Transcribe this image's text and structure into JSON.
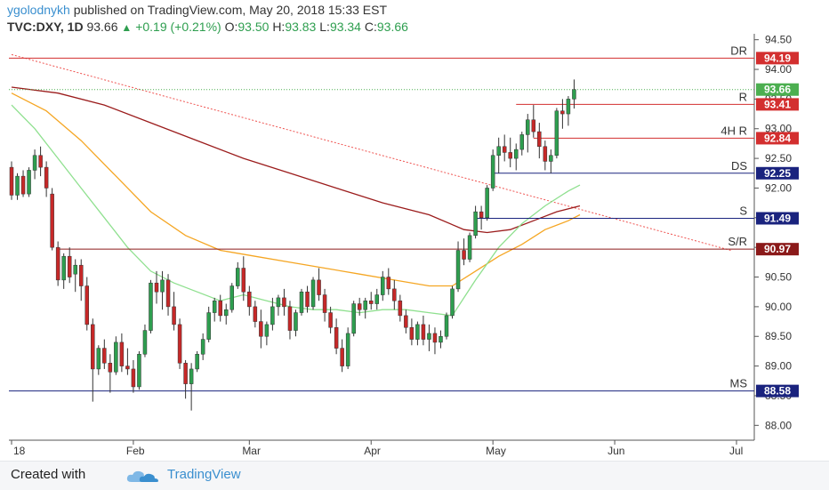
{
  "header": {
    "author": "ygolodnykh",
    "published": "published on TradingView.com, May 20, 2018 15:33 EST",
    "symbol": "TVC:DXY, 1D",
    "last": "93.66",
    "change": "+0.19 (+0.21%)",
    "o_label": "O:",
    "o": "93.50",
    "h_label": "H:",
    "h": "93.83",
    "l_label": "L:",
    "l": "93.34",
    "c_label": "C:",
    "c": "93.66"
  },
  "footer": {
    "created_with": "Created with",
    "brand": "TradingView"
  },
  "colors": {
    "up": "#2e9e4f",
    "down": "#c62828",
    "resistance": "#d32f2f",
    "support": "#1a237e",
    "sr": "#8b1a1a",
    "ma_fast": "#8fe08f",
    "ma_mid": "#f5a623",
    "ma_slow": "#9b1c1c",
    "trend": "#ef5350",
    "last": "#4caf50"
  },
  "chart_data": {
    "type": "candlestick",
    "y_axis": {
      "min": 87.75,
      "max": 94.6,
      "ticks": [
        "94.50",
        "94.00",
        "93.50",
        "93.00",
        "92.50",
        "92.00",
        "91.50",
        "91.00",
        "90.50",
        "90.00",
        "89.50",
        "89.00",
        "88.50",
        "88.00"
      ]
    },
    "x_ticks": [
      {
        "label": "18",
        "index": 0
      },
      {
        "label": "Feb",
        "index": 21
      },
      {
        "label": "Mar",
        "index": 41
      },
      {
        "label": "Apr",
        "index": 62
      },
      {
        "label": "May",
        "index": 83
      },
      {
        "label": "Jun",
        "index": 104
      },
      {
        "label": "Jul",
        "index": 125
      }
    ],
    "levels": [
      {
        "name": "DR",
        "value": 94.19,
        "label": "94.19",
        "kind": "resistance"
      },
      {
        "name": "R",
        "value": 93.41,
        "label": "93.41",
        "kind": "resistance",
        "start_index": 87
      },
      {
        "name": "4H R",
        "value": 92.84,
        "label": "92.84",
        "kind": "resistance",
        "start_index": 90
      },
      {
        "name": "DS",
        "value": 92.25,
        "label": "92.25",
        "kind": "support",
        "start_index": 83
      },
      {
        "name": "S",
        "value": 91.49,
        "label": "91.49",
        "kind": "support",
        "start_index": 80
      },
      {
        "name": "S/R",
        "value": 90.97,
        "label": "90.97",
        "kind": "sr",
        "start_index": 8
      },
      {
        "name": "MS",
        "value": 88.58,
        "label": "88.58",
        "kind": "support"
      }
    ],
    "last_price": {
      "value": 93.66,
      "label": "93.66"
    },
    "trendline": {
      "start": [
        0,
        94.25
      ],
      "end": [
        124,
        90.95
      ]
    },
    "candles": [
      [
        92.35,
        92.45,
        91.8,
        91.88
      ],
      [
        91.88,
        92.25,
        91.8,
        92.2
      ],
      [
        92.2,
        92.3,
        91.85,
        91.9
      ],
      [
        91.9,
        92.35,
        91.85,
        92.3
      ],
      [
        92.3,
        92.65,
        92.15,
        92.55
      ],
      [
        92.55,
        92.7,
        92.2,
        92.35
      ],
      [
        92.35,
        92.45,
        91.85,
        92.0
      ],
      [
        91.9,
        92.0,
        90.95,
        91.0
      ],
      [
        91.0,
        91.1,
        90.35,
        90.45
      ],
      [
        90.45,
        90.9,
        90.3,
        90.85
      ],
      [
        90.85,
        91.0,
        90.4,
        90.5
      ],
      [
        90.55,
        90.8,
        90.25,
        90.7
      ],
      [
        90.7,
        90.8,
        90.1,
        90.35
      ],
      [
        90.35,
        90.5,
        89.6,
        89.7
      ],
      [
        89.7,
        89.8,
        88.4,
        88.95
      ],
      [
        88.95,
        89.35,
        88.85,
        89.3
      ],
      [
        89.3,
        89.45,
        88.95,
        89.05
      ],
      [
        89.05,
        89.2,
        88.55,
        88.9
      ],
      [
        88.9,
        89.5,
        88.85,
        89.4
      ],
      [
        89.4,
        89.55,
        88.9,
        89.0
      ],
      [
        89.0,
        89.3,
        88.85,
        88.95
      ],
      [
        88.95,
        89.1,
        88.55,
        88.65
      ],
      [
        88.65,
        89.25,
        88.6,
        89.2
      ],
      [
        89.2,
        89.7,
        89.15,
        89.6
      ],
      [
        89.6,
        90.45,
        89.55,
        90.4
      ],
      [
        90.4,
        90.6,
        90.05,
        90.25
      ],
      [
        90.25,
        90.6,
        89.95,
        90.45
      ],
      [
        90.45,
        90.55,
        89.85,
        90.0
      ],
      [
        90.0,
        90.25,
        89.6,
        89.7
      ],
      [
        89.7,
        89.8,
        88.95,
        89.05
      ],
      [
        89.05,
        89.1,
        88.45,
        88.7
      ],
      [
        88.7,
        89.05,
        88.25,
        88.95
      ],
      [
        88.95,
        89.25,
        88.9,
        89.2
      ],
      [
        89.2,
        89.55,
        89.1,
        89.45
      ],
      [
        89.45,
        90.0,
        89.4,
        89.9
      ],
      [
        89.9,
        90.15,
        89.75,
        90.1
      ],
      [
        90.1,
        90.2,
        89.75,
        89.85
      ],
      [
        89.85,
        90.05,
        89.7,
        89.95
      ],
      [
        89.95,
        90.4,
        89.9,
        90.35
      ],
      [
        90.35,
        90.75,
        90.3,
        90.65
      ],
      [
        90.65,
        90.85,
        90.1,
        90.25
      ],
      [
        90.25,
        90.35,
        89.85,
        90.0
      ],
      [
        90.0,
        90.1,
        89.65,
        89.75
      ],
      [
        89.75,
        89.95,
        89.3,
        89.5
      ],
      [
        89.5,
        89.75,
        89.35,
        89.7
      ],
      [
        89.7,
        90.15,
        89.6,
        90.0
      ],
      [
        90.0,
        90.2,
        89.85,
        90.15
      ],
      [
        90.15,
        90.3,
        89.85,
        90.0
      ],
      [
        90.0,
        90.1,
        89.45,
        89.6
      ],
      [
        89.6,
        89.95,
        89.5,
        89.9
      ],
      [
        89.9,
        90.3,
        89.85,
        90.25
      ],
      [
        90.25,
        90.35,
        89.9,
        90.0
      ],
      [
        90.0,
        90.5,
        89.95,
        90.45
      ],
      [
        90.45,
        90.65,
        90.1,
        90.2
      ],
      [
        90.2,
        90.3,
        89.75,
        89.9
      ],
      [
        89.9,
        90.0,
        89.55,
        89.65
      ],
      [
        89.65,
        89.8,
        89.2,
        89.3
      ],
      [
        89.3,
        89.45,
        88.9,
        89.0
      ],
      [
        89.0,
        89.65,
        88.95,
        89.55
      ],
      [
        89.55,
        90.1,
        89.5,
        90.05
      ],
      [
        90.05,
        90.15,
        89.85,
        89.95
      ],
      [
        89.95,
        90.15,
        89.8,
        90.1
      ],
      [
        90.1,
        90.25,
        89.95,
        90.05
      ],
      [
        90.05,
        90.3,
        89.95,
        90.2
      ],
      [
        90.2,
        90.6,
        90.1,
        90.5
      ],
      [
        90.5,
        90.65,
        90.2,
        90.3
      ],
      [
        90.3,
        90.45,
        89.95,
        90.1
      ],
      [
        90.1,
        90.2,
        89.75,
        89.85
      ],
      [
        89.85,
        89.95,
        89.55,
        89.65
      ],
      [
        89.65,
        89.8,
        89.35,
        89.45
      ],
      [
        89.45,
        89.75,
        89.35,
        89.7
      ],
      [
        89.7,
        89.85,
        89.35,
        89.45
      ],
      [
        89.45,
        89.7,
        89.25,
        89.55
      ],
      [
        89.55,
        89.65,
        89.2,
        89.4
      ],
      [
        89.4,
        89.6,
        89.3,
        89.5
      ],
      [
        89.5,
        89.9,
        89.45,
        89.85
      ],
      [
        89.85,
        90.35,
        89.8,
        90.3
      ],
      [
        90.3,
        91.1,
        90.25,
        90.95
      ],
      [
        90.95,
        91.15,
        90.7,
        90.8
      ],
      [
        90.8,
        91.25,
        90.75,
        91.2
      ],
      [
        91.2,
        91.7,
        91.15,
        91.6
      ],
      [
        91.6,
        91.7,
        91.3,
        91.5
      ],
      [
        91.5,
        92.05,
        91.45,
        92.0
      ],
      [
        92.0,
        92.65,
        91.95,
        92.55
      ],
      [
        92.55,
        92.85,
        92.25,
        92.7
      ],
      [
        92.7,
        92.9,
        92.45,
        92.6
      ],
      [
        92.6,
        92.85,
        92.35,
        92.5
      ],
      [
        92.5,
        92.75,
        92.3,
        92.65
      ],
      [
        92.65,
        92.95,
        92.55,
        92.9
      ],
      [
        92.9,
        93.25,
        92.6,
        93.15
      ],
      [
        93.15,
        93.4,
        92.85,
        92.95
      ],
      [
        92.95,
        93.1,
        92.5,
        92.7
      ],
      [
        92.7,
        92.8,
        92.3,
        92.45
      ],
      [
        92.45,
        92.65,
        92.25,
        92.55
      ],
      [
        92.55,
        93.35,
        92.5,
        93.3
      ],
      [
        93.3,
        93.5,
        93.0,
        93.25
      ],
      [
        93.25,
        93.55,
        93.05,
        93.5
      ],
      [
        93.5,
        93.83,
        93.34,
        93.66
      ]
    ],
    "moving_averages": [
      {
        "color_key": "ma_slow",
        "points": [
          [
            0,
            93.7
          ],
          [
            8,
            93.6
          ],
          [
            16,
            93.4
          ],
          [
            24,
            93.1
          ],
          [
            32,
            92.8
          ],
          [
            40,
            92.5
          ],
          [
            48,
            92.25
          ],
          [
            56,
            92.0
          ],
          [
            64,
            91.75
          ],
          [
            72,
            91.55
          ],
          [
            78,
            91.3
          ],
          [
            82,
            91.25
          ],
          [
            86,
            91.3
          ],
          [
            90,
            91.45
          ],
          [
            94,
            91.6
          ],
          [
            98,
            91.7
          ]
        ]
      },
      {
        "color_key": "ma_mid",
        "points": [
          [
            0,
            93.6
          ],
          [
            6,
            93.3
          ],
          [
            12,
            92.8
          ],
          [
            18,
            92.2
          ],
          [
            24,
            91.6
          ],
          [
            30,
            91.2
          ],
          [
            36,
            90.95
          ],
          [
            42,
            90.85
          ],
          [
            48,
            90.75
          ],
          [
            54,
            90.65
          ],
          [
            60,
            90.55
          ],
          [
            66,
            90.45
          ],
          [
            72,
            90.35
          ],
          [
            76,
            90.35
          ],
          [
            80,
            90.6
          ],
          [
            84,
            90.85
          ],
          [
            88,
            91.05
          ],
          [
            92,
            91.3
          ],
          [
            96,
            91.45
          ],
          [
            98,
            91.55
          ]
        ]
      },
      {
        "color_key": "ma_fast",
        "points": [
          [
            0,
            93.4
          ],
          [
            4,
            93.0
          ],
          [
            8,
            92.5
          ],
          [
            12,
            92.0
          ],
          [
            16,
            91.5
          ],
          [
            20,
            91.0
          ],
          [
            24,
            90.6
          ],
          [
            28,
            90.4
          ],
          [
            32,
            90.25
          ],
          [
            36,
            90.1
          ],
          [
            40,
            90.2
          ],
          [
            44,
            90.1
          ],
          [
            48,
            90.0
          ],
          [
            52,
            89.95
          ],
          [
            56,
            89.95
          ],
          [
            60,
            89.9
          ],
          [
            64,
            89.95
          ],
          [
            68,
            89.95
          ],
          [
            72,
            89.9
          ],
          [
            76,
            89.85
          ],
          [
            80,
            90.45
          ],
          [
            84,
            91.0
          ],
          [
            88,
            91.4
          ],
          [
            92,
            91.7
          ],
          [
            96,
            91.95
          ],
          [
            98,
            92.05
          ]
        ]
      }
    ]
  }
}
